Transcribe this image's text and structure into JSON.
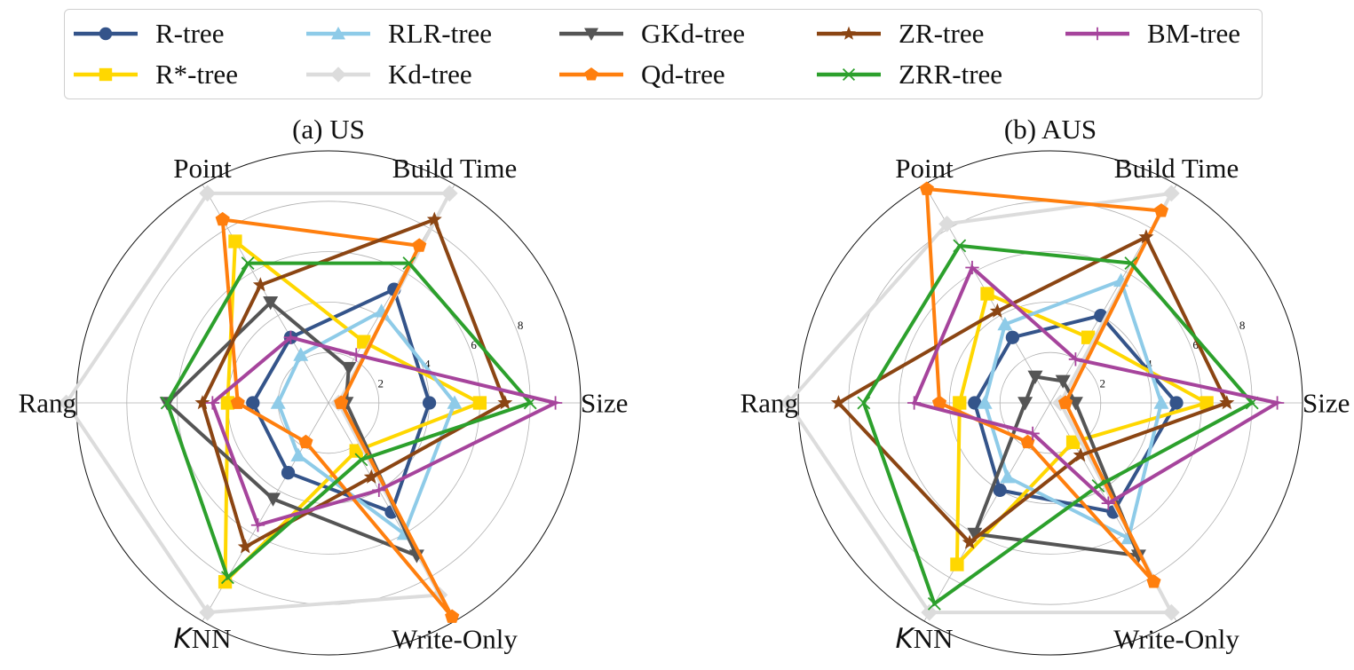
{
  "legend": {
    "items": [
      {
        "name": "R-tree",
        "color": "#34548a",
        "marker": "circle"
      },
      {
        "name": "RLR-tree",
        "color": "#8ecbe8",
        "marker": "triangle-up"
      },
      {
        "name": "GKd-tree",
        "color": "#555555",
        "marker": "triangle-down"
      },
      {
        "name": "ZR-tree",
        "color": "#8b4513",
        "marker": "star"
      },
      {
        "name": "BM-tree",
        "color": "#a6449c",
        "marker": "plus"
      },
      {
        "name": "R*-tree",
        "color": "#ffd700",
        "marker": "square"
      },
      {
        "name": "Kd-tree",
        "color": "#dcdcdc",
        "marker": "diamond"
      },
      {
        "name": "Qd-tree",
        "color": "#ff7f0e",
        "marker": "pentagon"
      },
      {
        "name": "ZRR-tree",
        "color": "#2ca02c",
        "marker": "x"
      }
    ]
  },
  "chart_data": [
    {
      "type": "radar",
      "title": "(a) US",
      "axes": [
        "Size",
        "Build Time",
        "Point",
        "Range",
        "KNN",
        "Write-Only"
      ],
      "axis_label_display": {
        "Range": "Rang"
      },
      "rlim": [
        0,
        10
      ],
      "rticks": [
        2,
        4,
        6,
        8
      ],
      "grid": true,
      "series": [
        {
          "name": "R-tree",
          "values": [
            4.0,
            5.2,
            3.0,
            3.0,
            3.2,
            5.0
          ]
        },
        {
          "name": "R*-tree",
          "values": [
            6.0,
            2.8,
            7.4,
            4.0,
            8.2,
            2.2
          ]
        },
        {
          "name": "RLR-tree",
          "values": [
            5.0,
            4.2,
            2.2,
            2.0,
            2.4,
            6.0
          ]
        },
        {
          "name": "Kd-tree",
          "values": [
            0.4,
            9.6,
            9.6,
            10.4,
            9.6,
            8.8
          ]
        },
        {
          "name": "GKd-tree",
          "values": [
            0.7,
            1.6,
            4.6,
            6.4,
            4.4,
            7.0
          ]
        },
        {
          "name": "Qd-tree",
          "values": [
            0.5,
            7.2,
            8.4,
            3.6,
            1.8,
            9.8
          ]
        },
        {
          "name": "ZR-tree",
          "values": [
            7.0,
            8.4,
            5.4,
            5.0,
            6.6,
            3.4
          ]
        },
        {
          "name": "ZRR-tree",
          "values": [
            8.0,
            6.4,
            6.4,
            6.4,
            8.0,
            2.6
          ]
        },
        {
          "name": "BM-tree",
          "values": [
            9.0,
            2.2,
            3.0,
            4.6,
            5.6,
            4.0
          ]
        }
      ]
    },
    {
      "type": "radar",
      "title": "(b) AUS",
      "axes": [
        "Size",
        "Build Time",
        "Point",
        "Range",
        "KNN",
        "Write-Only"
      ],
      "axis_label_display": {
        "Range": "Rang"
      },
      "rlim": [
        0,
        10
      ],
      "rticks": [
        2,
        4,
        6,
        8
      ],
      "grid": true,
      "series": [
        {
          "name": "R-tree",
          "values": [
            5.0,
            4.0,
            3.0,
            3.0,
            4.0,
            5.0
          ]
        },
        {
          "name": "R*-tree",
          "values": [
            6.2,
            3.0,
            5.0,
            3.6,
            7.4,
            1.8
          ]
        },
        {
          "name": "RLR-tree",
          "values": [
            4.4,
            5.6,
            3.6,
            2.6,
            3.4,
            6.2
          ]
        },
        {
          "name": "Kd-tree",
          "values": [
            0.4,
            9.6,
            8.2,
            10.4,
            9.6,
            9.6
          ]
        },
        {
          "name": "GKd-tree",
          "values": [
            1.0,
            1.0,
            1.2,
            1.0,
            6.0,
            7.0
          ]
        },
        {
          "name": "Qd-tree",
          "values": [
            0.6,
            8.8,
            9.8,
            4.4,
            1.8,
            8.2
          ]
        },
        {
          "name": "ZR-tree",
          "values": [
            7.0,
            7.6,
            4.2,
            8.4,
            6.4,
            2.4
          ]
        },
        {
          "name": "ZRR-tree",
          "values": [
            8.0,
            6.4,
            7.2,
            7.4,
            9.2,
            3.8
          ]
        },
        {
          "name": "BM-tree",
          "values": [
            9.0,
            2.0,
            6.2,
            5.4,
            1.4,
            4.6
          ]
        }
      ]
    }
  ]
}
